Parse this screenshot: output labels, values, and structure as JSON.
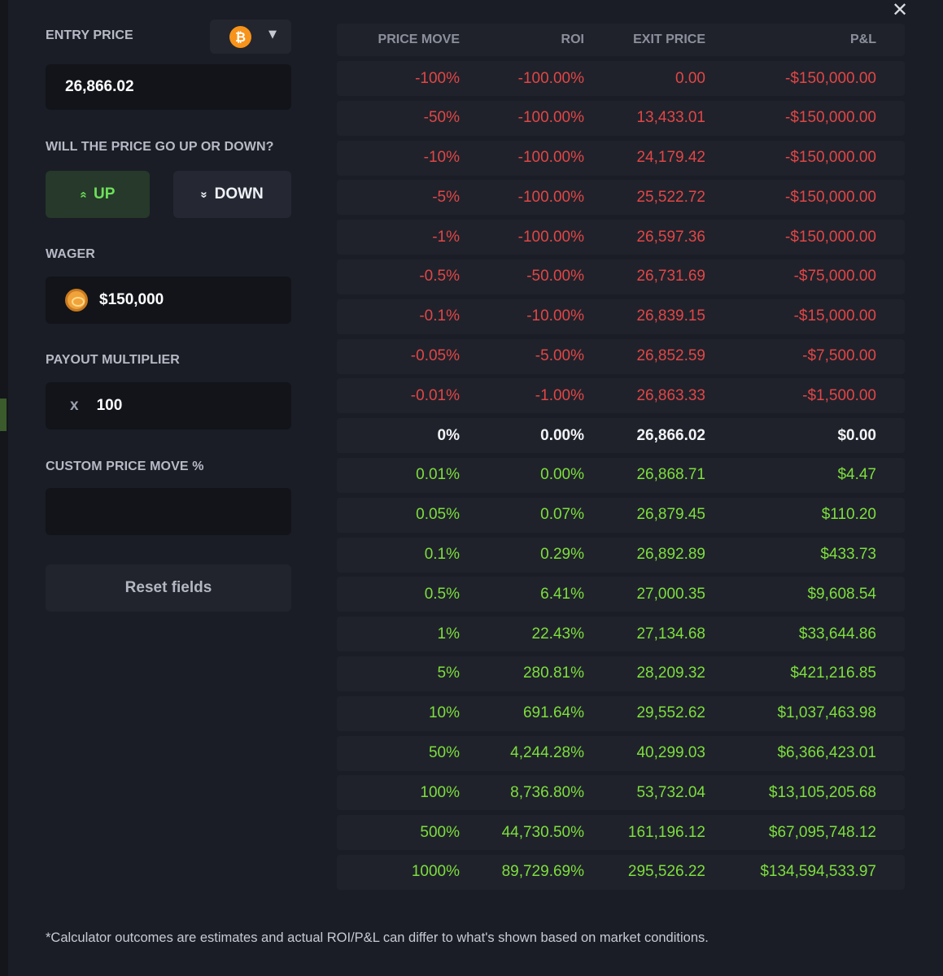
{
  "close_label": "✕",
  "left_panel": {
    "entry_price_label": "ENTRY PRICE",
    "coin_symbol": "₿",
    "coin_caret": "▼",
    "entry_price_value": "26,866.02",
    "direction_question": "WILL THE PRICE GO UP OR DOWN?",
    "up_icon": "«",
    "up_label": "UP",
    "down_icon": "»",
    "down_label": "DOWN",
    "wager_label": "WAGER",
    "wager_value": "$150,000",
    "multiplier_label": "PAYOUT MULTIPLIER",
    "multiplier_prefix": "x",
    "multiplier_value": "100",
    "custom_label": "CUSTOM PRICE MOVE %",
    "custom_value": "",
    "reset_label": "Reset fields"
  },
  "table": {
    "headers": [
      "PRICE MOVE",
      "ROI",
      "EXIT PRICE",
      "P&L"
    ],
    "rows": [
      {
        "move": "-100%",
        "roi": "-100.00%",
        "exit": "0.00",
        "pnl": "-$150,000.00",
        "type": "neg"
      },
      {
        "move": "-50%",
        "roi": "-100.00%",
        "exit": "13,433.01",
        "pnl": "-$150,000.00",
        "type": "neg"
      },
      {
        "move": "-10%",
        "roi": "-100.00%",
        "exit": "24,179.42",
        "pnl": "-$150,000.00",
        "type": "neg"
      },
      {
        "move": "-5%",
        "roi": "-100.00%",
        "exit": "25,522.72",
        "pnl": "-$150,000.00",
        "type": "neg"
      },
      {
        "move": "-1%",
        "roi": "-100.00%",
        "exit": "26,597.36",
        "pnl": "-$150,000.00",
        "type": "neg"
      },
      {
        "move": "-0.5%",
        "roi": "-50.00%",
        "exit": "26,731.69",
        "pnl": "-$75,000.00",
        "type": "neg"
      },
      {
        "move": "-0.1%",
        "roi": "-10.00%",
        "exit": "26,839.15",
        "pnl": "-$15,000.00",
        "type": "neg"
      },
      {
        "move": "-0.05%",
        "roi": "-5.00%",
        "exit": "26,852.59",
        "pnl": "-$7,500.00",
        "type": "neg"
      },
      {
        "move": "-0.01%",
        "roi": "-1.00%",
        "exit": "26,863.33",
        "pnl": "-$1,500.00",
        "type": "neg"
      },
      {
        "move": "0%",
        "roi": "0.00%",
        "exit": "26,866.02",
        "pnl": "$0.00",
        "type": "zero"
      },
      {
        "move": "0.01%",
        "roi": "0.00%",
        "exit": "26,868.71",
        "pnl": "$4.47",
        "type": "pos"
      },
      {
        "move": "0.05%",
        "roi": "0.07%",
        "exit": "26,879.45",
        "pnl": "$110.20",
        "type": "pos"
      },
      {
        "move": "0.1%",
        "roi": "0.29%",
        "exit": "26,892.89",
        "pnl": "$433.73",
        "type": "pos"
      },
      {
        "move": "0.5%",
        "roi": "6.41%",
        "exit": "27,000.35",
        "pnl": "$9,608.54",
        "type": "pos"
      },
      {
        "move": "1%",
        "roi": "22.43%",
        "exit": "27,134.68",
        "pnl": "$33,644.86",
        "type": "pos"
      },
      {
        "move": "5%",
        "roi": "280.81%",
        "exit": "28,209.32",
        "pnl": "$421,216.85",
        "type": "pos"
      },
      {
        "move": "10%",
        "roi": "691.64%",
        "exit": "29,552.62",
        "pnl": "$1,037,463.98",
        "type": "pos"
      },
      {
        "move": "50%",
        "roi": "4,244.28%",
        "exit": "40,299.03",
        "pnl": "$6,366,423.01",
        "type": "pos"
      },
      {
        "move": "100%",
        "roi": "8,736.80%",
        "exit": "53,732.04",
        "pnl": "$13,105,205.68",
        "type": "pos"
      },
      {
        "move": "500%",
        "roi": "44,730.50%",
        "exit": "161,196.12",
        "pnl": "$67,095,748.12",
        "type": "pos"
      },
      {
        "move": "1000%",
        "roi": "89,729.69%",
        "exit": "295,526.22",
        "pnl": "$134,594,533.97",
        "type": "pos"
      }
    ]
  },
  "colors": {
    "negative": "#e24646",
    "positive": "#7ddf3c",
    "neutral": "#f2f3f6"
  },
  "footnote": "*Calculator outcomes are estimates and actual ROI/P&L can differ to what's shown based on market conditions."
}
